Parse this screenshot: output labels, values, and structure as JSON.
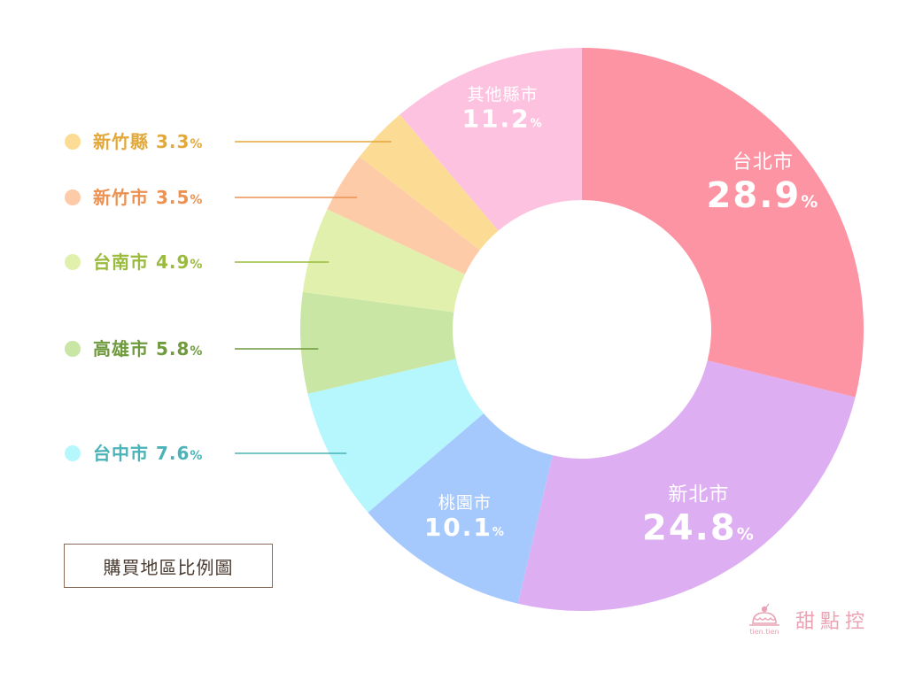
{
  "chart_data": {
    "type": "pie",
    "donut": true,
    "title": "購買地區比例圖",
    "unit": "%",
    "slices": [
      {
        "label": "台北市",
        "value": 28.9,
        "color": "#fc94a3",
        "label_color": "#ffffff",
        "placement": "inside"
      },
      {
        "label": "新北市",
        "value": 24.8,
        "color": "#deaef2",
        "label_color": "#ffffff",
        "placement": "inside"
      },
      {
        "label": "桃園市",
        "value": 10.1,
        "color": "#a6c9fd",
        "label_color": "#ffffff",
        "placement": "inside"
      },
      {
        "label": "台中市",
        "value": 7.6,
        "color": "#b5f7fc",
        "label_color": "#49b3b8",
        "placement": "legend-left"
      },
      {
        "label": "高雄市",
        "value": 5.8,
        "color": "#c9e6a4",
        "label_color": "#6f9a3d",
        "placement": "legend-left"
      },
      {
        "label": "台南市",
        "value": 4.9,
        "color": "#e1f0ad",
        "label_color": "#9bbb3d",
        "placement": "legend-left"
      },
      {
        "label": "新竹市",
        "value": 3.5,
        "color": "#fdcba8",
        "label_color": "#ec9150",
        "placement": "legend-left"
      },
      {
        "label": "新竹縣",
        "value": 3.3,
        "color": "#fcdc94",
        "label_color": "#e3a83a",
        "placement": "legend-left"
      },
      {
        "label": "其他縣市",
        "value": 11.2,
        "color": "#fdc2e0",
        "label_color": "#ffffff",
        "placement": "inside"
      }
    ]
  },
  "brand": {
    "logo_text": "tien.tien",
    "name": "甜點控",
    "color": "#e9a3b5"
  }
}
